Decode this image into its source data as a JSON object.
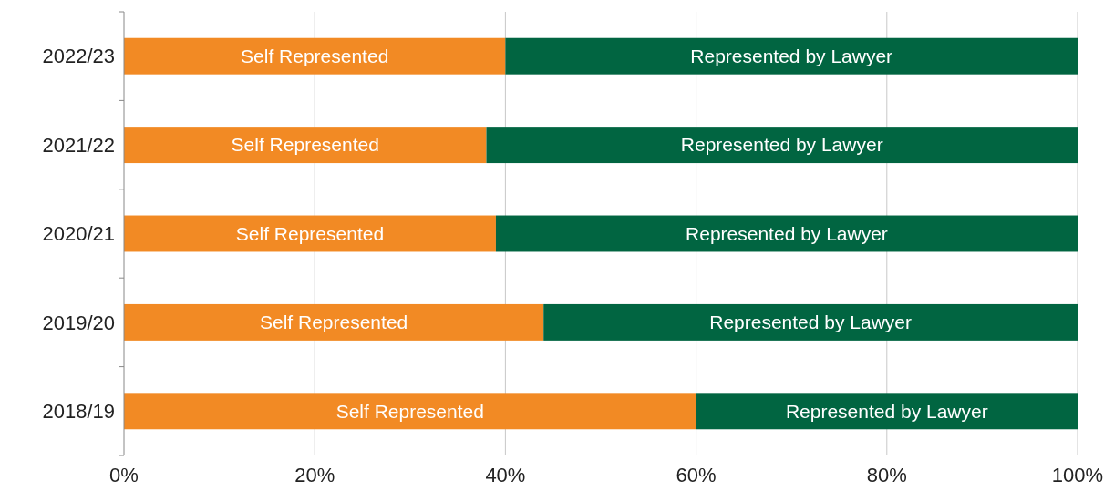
{
  "chart_data": {
    "type": "bar",
    "orientation": "horizontal",
    "stacked": true,
    "categories": [
      "2022/23",
      "2021/22",
      "2020/21",
      "2019/20",
      "2018/19"
    ],
    "series": [
      {
        "name": "Self Represented",
        "color": "#f28a24",
        "values": [
          40,
          38,
          39,
          44,
          60
        ]
      },
      {
        "name": "Represented by Lawyer",
        "color": "#016541",
        "values": [
          60,
          62,
          61,
          56,
          40
        ]
      }
    ],
    "xlim": [
      0,
      100
    ],
    "xticks": [
      {
        "value": 0,
        "label": "0%"
      },
      {
        "value": 20,
        "label": "20%"
      },
      {
        "value": 40,
        "label": "40%"
      },
      {
        "value": 60,
        "label": "60%"
      },
      {
        "value": 80,
        "label": "80%"
      },
      {
        "value": 100,
        "label": "100%"
      }
    ],
    "grid": "x"
  }
}
